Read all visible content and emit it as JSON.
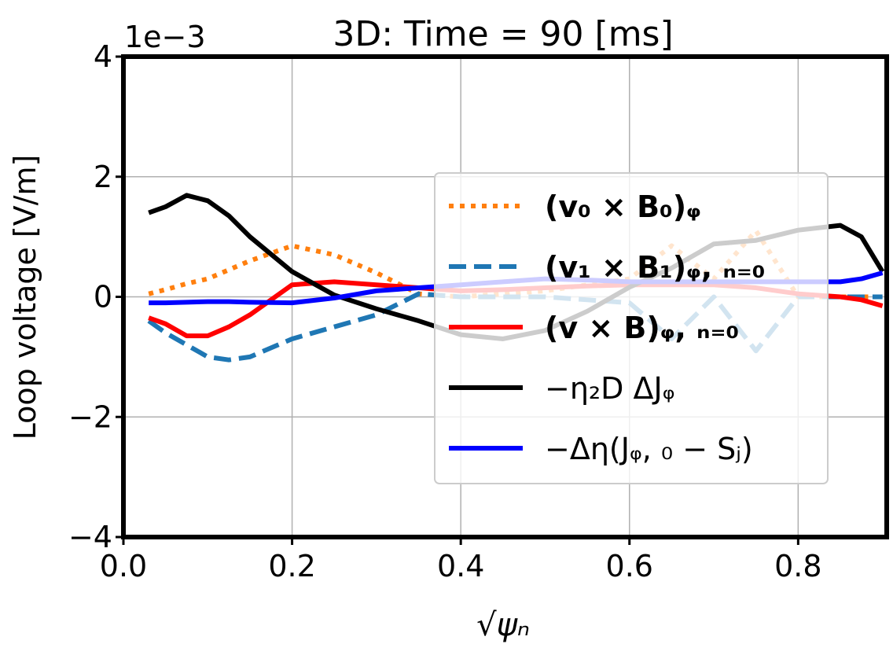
{
  "chart_data": {
    "type": "line",
    "title": "3D: Time = 90 [ms]",
    "y_label": "Loop voltage [V/m]",
    "x_label": "√ψₙ",
    "y_offset_label": "1e−3",
    "x": [
      0.03,
      0.05,
      0.075,
      0.1,
      0.125,
      0.15,
      0.2,
      0.25,
      0.3,
      0.35,
      0.4,
      0.45,
      0.5,
      0.55,
      0.6,
      0.65,
      0.7,
      0.75,
      0.8,
      0.85,
      0.875,
      0.9
    ],
    "series": [
      {
        "name": "(v₀ × B₀)ᵩ",
        "color": "#ff7f0e",
        "style": "dotted",
        "values": [
          0.05,
          0.12,
          0.22,
          0.3,
          0.45,
          0.6,
          0.85,
          0.7,
          0.4,
          0.05,
          0.0,
          0.05,
          0.1,
          0.2,
          0.3,
          0.85,
          0.3,
          1.1,
          0.0,
          0.0,
          0.0,
          0.0
        ]
      },
      {
        "name": "(v₁ × B₁)ᵩ, ₙ₌₀",
        "color": "#1f77b4",
        "style": "dashed",
        "values": [
          -0.4,
          -0.6,
          -0.8,
          -1.0,
          -1.05,
          -1.0,
          -0.7,
          -0.5,
          -0.3,
          0.05,
          0.0,
          0.0,
          0.0,
          -0.05,
          -0.1,
          -0.7,
          0.0,
          -0.9,
          0.0,
          0.0,
          0.0,
          0.0
        ]
      },
      {
        "name": "(v × B)ᵩ, ₙ₌₀",
        "color": "#ff0000",
        "style": "solid",
        "values": [
          -0.35,
          -0.45,
          -0.65,
          -0.65,
          -0.5,
          -0.3,
          0.2,
          0.25,
          0.2,
          0.15,
          0.1,
          0.12,
          0.15,
          0.18,
          0.2,
          0.2,
          0.2,
          0.15,
          0.05,
          0.0,
          -0.05,
          -0.15
        ]
      },
      {
        "name": "−η₂D ΔJᵩ",
        "color": "#000000",
        "style": "solid",
        "values": [
          1.4,
          1.5,
          1.69,
          1.6,
          1.35,
          1.0,
          0.42,
          0.03,
          -0.2,
          -0.4,
          -0.63,
          -0.7,
          -0.56,
          -0.24,
          0.16,
          0.48,
          0.88,
          0.94,
          1.11,
          1.19,
          1.0,
          0.42
        ]
      },
      {
        "name": "−Δη(Jᵩ, ₀ − Sⱼ)",
        "color": "#0000ff",
        "style": "solid",
        "values": [
          -0.1,
          -0.1,
          -0.09,
          -0.08,
          -0.08,
          -0.09,
          -0.1,
          -0.02,
          0.1,
          0.15,
          0.2,
          0.25,
          0.3,
          0.28,
          0.25,
          0.25,
          0.25,
          0.25,
          0.25,
          0.25,
          0.3,
          0.4
        ]
      }
    ],
    "xlim": [
      0,
      0.905
    ],
    "ylim": [
      -4,
      4
    ],
    "xticks": [
      {
        "value": 0,
        "label": "0.0"
      },
      0.2,
      0.4,
      0.6,
      0.8
    ],
    "yticks": [
      {
        "value": -4,
        "label": "−4"
      },
      {
        "value": -2,
        "label": "−2"
      },
      0,
      2,
      4
    ],
    "grid": true,
    "legend": "right"
  }
}
